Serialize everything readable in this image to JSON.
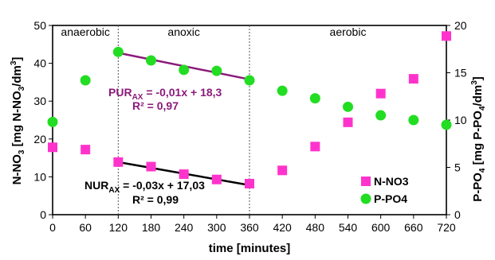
{
  "chart_data": {
    "type": "scatter",
    "x_axis": {
      "label": "time [minutes]",
      "range": [
        0,
        720
      ],
      "ticks": [
        0,
        60,
        120,
        180,
        240,
        300,
        360,
        420,
        480,
        540,
        600,
        660,
        720
      ]
    },
    "y_left": {
      "label_main": "N-NO",
      "label_sub": "3",
      "label_tail": " [mg N-NO",
      "label_sub2": "3",
      "label_tail2": "/dm",
      "label_sup": "3",
      "label_end": "]",
      "range": [
        0,
        50
      ],
      "ticks": [
        0,
        10,
        20,
        30,
        40,
        50
      ]
    },
    "y_right": {
      "label_main": "P-PO",
      "label_sub": "4",
      "label_tail": " [mg P-PO",
      "label_sub2": "4",
      "label_tail2": "/dm",
      "label_sup": "3",
      "label_end": "]",
      "range": [
        0,
        20
      ],
      "ticks": [
        0,
        5,
        10,
        15,
        20
      ]
    },
    "phases": [
      {
        "label": "anaerobic",
        "from": 0,
        "to": 120
      },
      {
        "label": "anoxic",
        "from": 120,
        "to": 360
      },
      {
        "label": "aerobic",
        "from": 360,
        "to": 720
      }
    ],
    "series": [
      {
        "name": "N-NO3",
        "axis": "left",
        "marker": "square",
        "color": "#ff33cc",
        "x": [
          0,
          60,
          120,
          180,
          240,
          300,
          360,
          420,
          480,
          540,
          600,
          660,
          720
        ],
        "y": [
          17.8,
          17.2,
          13.9,
          12.7,
          10.7,
          9.3,
          8.2,
          11.7,
          18.0,
          24.4,
          32.0,
          35.9,
          47.2
        ]
      },
      {
        "name": "P-PO4",
        "axis": "right",
        "marker": "circle",
        "color": "#22dd22",
        "x": [
          0,
          60,
          120,
          180,
          240,
          300,
          360,
          420,
          480,
          540,
          600,
          660,
          720
        ],
        "y": [
          9.8,
          14.2,
          17.2,
          16.3,
          15.3,
          15.2,
          14.2,
          13.1,
          12.3,
          11.4,
          10.5,
          10.0,
          9.5
        ]
      }
    ],
    "trendlines": [
      {
        "axis": "right",
        "color": "#8b1a7a",
        "x": [
          120,
          360
        ],
        "y": [
          17.1,
          14.3
        ],
        "eq_main": "PUR",
        "eq_sub": "AX",
        "eq_tail": " = -0,01x + 18,3",
        "r2": "R² = 0,97"
      },
      {
        "axis": "left",
        "color": "#000000",
        "x": [
          120,
          360
        ],
        "y": [
          13.9,
          7.8
        ],
        "eq_main": "NUR",
        "eq_sub": "AX",
        "eq_tail": " = -0,03x + 17,03",
        "r2": "R² = 0,99"
      }
    ],
    "legend_position": "bottom-right"
  }
}
